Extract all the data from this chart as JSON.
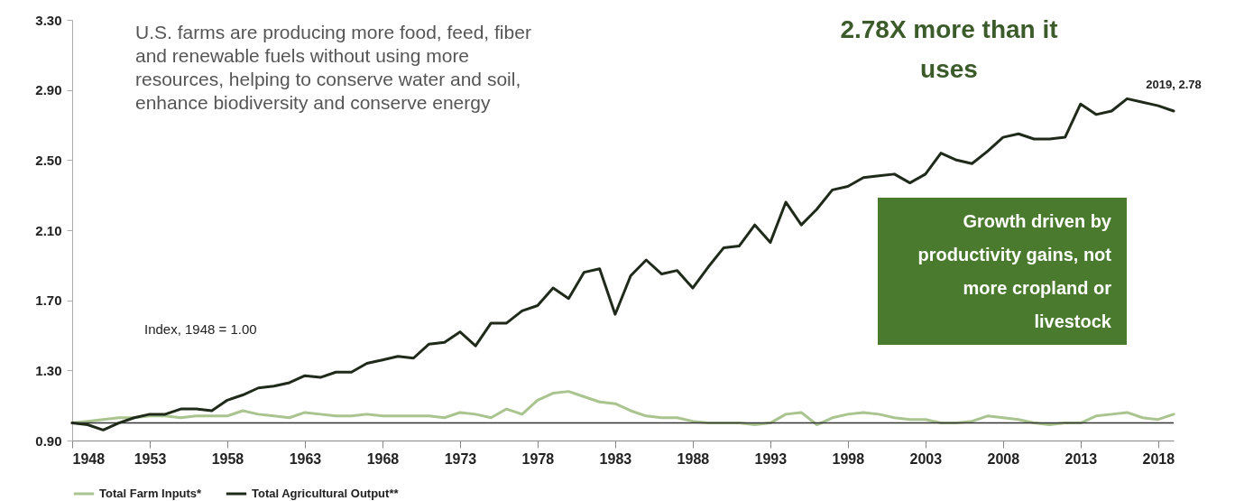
{
  "chart_data": {
    "type": "line",
    "x": [
      1948,
      1949,
      1950,
      1951,
      1952,
      1953,
      1954,
      1955,
      1956,
      1957,
      1958,
      1959,
      1960,
      1961,
      1962,
      1963,
      1964,
      1965,
      1966,
      1967,
      1968,
      1969,
      1970,
      1971,
      1972,
      1973,
      1974,
      1975,
      1976,
      1977,
      1978,
      1979,
      1980,
      1981,
      1982,
      1983,
      1984,
      1985,
      1986,
      1987,
      1988,
      1989,
      1990,
      1991,
      1992,
      1993,
      1994,
      1995,
      1996,
      1997,
      1998,
      1999,
      2000,
      2001,
      2002,
      2003,
      2004,
      2005,
      2006,
      2007,
      2008,
      2009,
      2010,
      2011,
      2012,
      2013,
      2014,
      2015,
      2016,
      2017,
      2018,
      2019
    ],
    "series": [
      {
        "name": "Total Farm Inputs*",
        "color": "#a9c48f",
        "values": [
          1.0,
          1.01,
          1.02,
          1.03,
          1.03,
          1.04,
          1.04,
          1.03,
          1.04,
          1.04,
          1.04,
          1.07,
          1.05,
          1.04,
          1.03,
          1.06,
          1.05,
          1.04,
          1.04,
          1.05,
          1.04,
          1.04,
          1.04,
          1.04,
          1.03,
          1.06,
          1.05,
          1.03,
          1.08,
          1.05,
          1.13,
          1.17,
          1.18,
          1.15,
          1.12,
          1.11,
          1.07,
          1.04,
          1.03,
          1.03,
          1.01,
          1.0,
          1.0,
          1.0,
          0.99,
          1.0,
          1.05,
          1.06,
          0.99,
          1.03,
          1.05,
          1.06,
          1.05,
          1.03,
          1.02,
          1.02,
          1.0,
          1.0,
          1.01,
          1.04,
          1.03,
          1.02,
          1.0,
          0.99,
          1.0,
          1.0,
          1.04,
          1.05,
          1.06,
          1.03,
          1.02,
          1.05
        ]
      },
      {
        "name": "Total Agricultural Output**",
        "color": "#1f2a1a",
        "values": [
          1.0,
          0.99,
          0.96,
          1.0,
          1.03,
          1.05,
          1.05,
          1.08,
          1.08,
          1.07,
          1.13,
          1.16,
          1.2,
          1.21,
          1.23,
          1.27,
          1.26,
          1.29,
          1.29,
          1.34,
          1.36,
          1.38,
          1.37,
          1.45,
          1.46,
          1.52,
          1.44,
          1.57,
          1.57,
          1.64,
          1.67,
          1.77,
          1.71,
          1.86,
          1.88,
          1.62,
          1.84,
          1.93,
          1.85,
          1.87,
          1.77,
          1.89,
          2.0,
          2.01,
          2.13,
          2.03,
          2.26,
          2.13,
          2.22,
          2.33,
          2.35,
          2.4,
          2.41,
          2.42,
          2.37,
          2.42,
          2.54,
          2.5,
          2.48,
          2.55,
          2.63,
          2.65,
          2.62,
          2.62,
          2.63,
          2.82,
          2.76,
          2.78,
          2.85,
          2.83,
          2.81,
          2.78
        ]
      }
    ],
    "xlim": [
      1948,
      2019
    ],
    "xticks": [
      1948,
      1953,
      1958,
      1963,
      1968,
      1973,
      1978,
      1983,
      1988,
      1993,
      1998,
      2003,
      2008,
      2013,
      2018
    ],
    "ylim": [
      0.9,
      3.3
    ],
    "yticks": [
      {
        "value": 0.9,
        "label": "0.90"
      },
      {
        "value": 1.3,
        "label": "1.30"
      },
      {
        "value": 1.7,
        "label": "1.70"
      },
      {
        "value": 2.1,
        "label": "2.10"
      },
      {
        "value": 2.5,
        "label": "2.50"
      },
      {
        "value": 2.9,
        "label": "2.90"
      },
      {
        "value": 3.3,
        "label": "3.30"
      }
    ],
    "ref_lines": [
      {
        "axis": "y",
        "value": 1.0,
        "color": "#333333"
      }
    ],
    "annotations": [
      "2.78X more than it\nuses",
      "U.S. farms are producing more food, feed, fiber\nand renewable fuels without using more\nresources, helping to conserve water and soil,\nenhance biodiversity and conserve energy",
      "Index, 1948 = 1.00",
      "Growth driven by\nproductivity gains, not\nmore cropland or\nlivestock",
      {
        "text": "2019, 2.78",
        "x": 2019,
        "y": 2.78
      }
    ],
    "grid": false,
    "legend": "bottom"
  }
}
